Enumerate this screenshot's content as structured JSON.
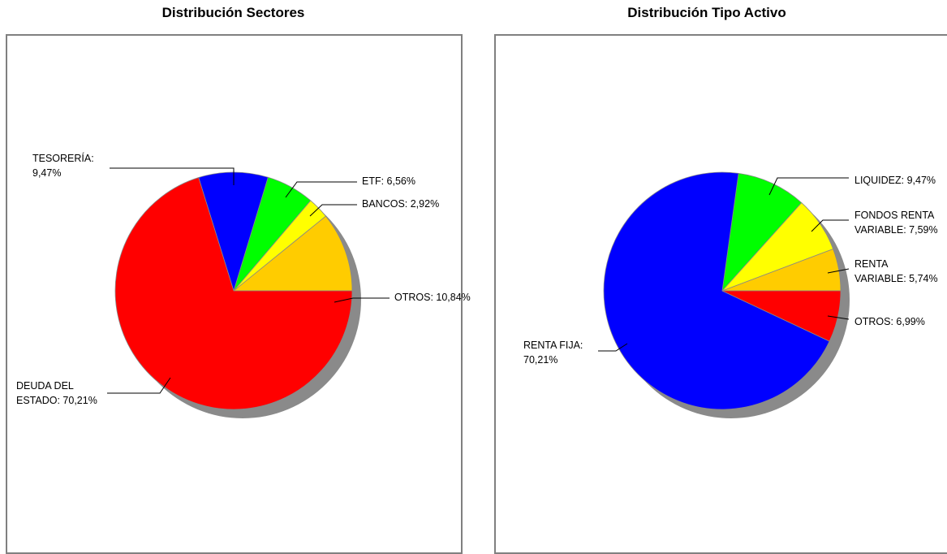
{
  "chart_data": [
    {
      "type": "pie",
      "title": "Distribución Sectores",
      "slices": [
        {
          "label": "OTROS: 10,84%",
          "value": 10.84,
          "color": "#FFCC00"
        },
        {
          "label": "BANCOS: 2,92%",
          "value": 2.92,
          "color": "#FFFF00"
        },
        {
          "label": "ETF: 6,56%",
          "value": 6.56,
          "color": "#00FF00"
        },
        {
          "label": "TESORERÍA: 9,47%",
          "label_lines": [
            "TESORERÍA:",
            "9,47%"
          ],
          "value": 9.47,
          "color": "#0000FF"
        },
        {
          "label": "DEUDA DEL ESTADO: 70,21%",
          "label_lines": [
            "DEUDA DEL",
            "ESTADO: 70,21%"
          ],
          "value": 70.21,
          "color": "#FF0000"
        }
      ]
    },
    {
      "type": "pie",
      "title": "Distribución Tipo Activo",
      "slices": [
        {
          "label": "RENTA VARIABLE: 5,74%",
          "label_lines": [
            "RENTA",
            "VARIABLE: 5,74%"
          ],
          "value": 5.74,
          "color": "#FFCC00"
        },
        {
          "label": "FONDOS RENTA VARIABLE: 7,59%",
          "label_lines": [
            "FONDOS RENTA",
            "VARIABLE: 7,59%"
          ],
          "value": 7.59,
          "color": "#FFFF00"
        },
        {
          "label": "LIQUIDEZ: 9,47%",
          "value": 9.47,
          "color": "#00FF00"
        },
        {
          "label": "RENTA FIJA: 70,21%",
          "label_lines": [
            "RENTA FIJA:",
            "70,21%"
          ],
          "value": 70.21,
          "color": "#0000FF"
        },
        {
          "label": "OTROS: 6,99%",
          "value": 6.99,
          "color": "#FF0000"
        }
      ]
    }
  ]
}
